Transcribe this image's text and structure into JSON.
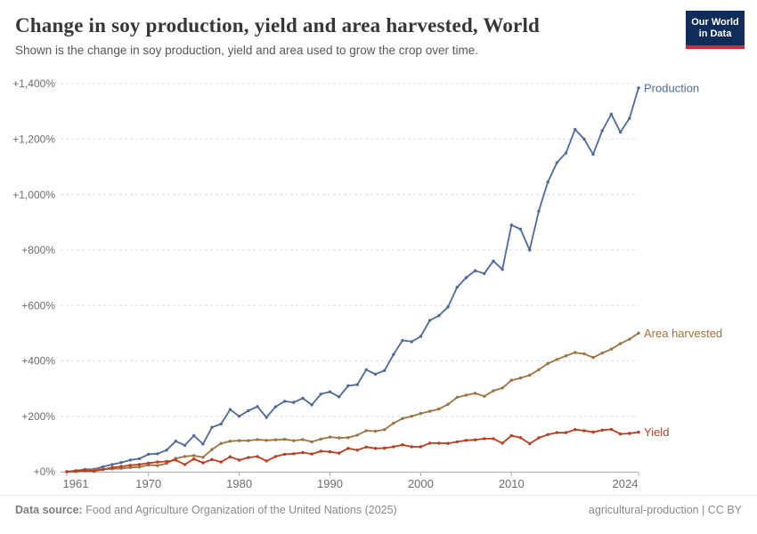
{
  "header": {
    "title": "Change in soy production, yield and area harvested, World",
    "subtitle": "Shown is the change in soy production, yield and area used to grow the crop over time.",
    "logo": {
      "line1": "Our World",
      "line2": "in Data"
    }
  },
  "footer": {
    "source_label": "Data source:",
    "source_text": " Food and Agriculture Organization of the United Nations (2025)",
    "attribution": "agricultural-production | CC BY"
  },
  "colors": {
    "production": "#4C6A9C",
    "area_harvested": "#9D7342",
    "yield": "#C13A1C",
    "grid": "#DCDCDC",
    "axis": "#ABABAB",
    "tick_label": "#6D6D6D",
    "logo_bg": "#102D5A",
    "logo_bar": "#D8252F"
  },
  "chart_data": {
    "type": "line",
    "title": "Change in soy production, yield and area harvested, World",
    "xlabel": "",
    "ylabel": "",
    "unit": "%",
    "value_prefix": "+",
    "grid": "horizontal-dashed",
    "legend": "line-end-labels",
    "ylim": [
      0,
      1400
    ],
    "yticks": [
      {
        "value": 0,
        "label": "+0%"
      },
      {
        "value": 200,
        "label": "+200%"
      },
      {
        "value": 400,
        "label": "+400%"
      },
      {
        "value": 600,
        "label": "+600%"
      },
      {
        "value": 800,
        "label": "+800%"
      },
      {
        "value": 1000,
        "label": "+1,000%"
      },
      {
        "value": 1200,
        "label": "+1,200%"
      },
      {
        "value": 1400,
        "label": "+1,400%"
      }
    ],
    "xticks": [
      {
        "value": 1961,
        "label": "1961"
      },
      {
        "value": 1970,
        "label": "1970"
      },
      {
        "value": 1980,
        "label": "1980"
      },
      {
        "value": 1990,
        "label": "1990"
      },
      {
        "value": 2000,
        "label": "2000"
      },
      {
        "value": 2010,
        "label": "2010"
      },
      {
        "value": 2024,
        "label": "2024"
      }
    ],
    "x": [
      1961,
      1962,
      1963,
      1964,
      1965,
      1966,
      1967,
      1968,
      1969,
      1970,
      1971,
      1972,
      1973,
      1974,
      1975,
      1976,
      1977,
      1978,
      1979,
      1980,
      1981,
      1982,
      1983,
      1984,
      1985,
      1986,
      1987,
      1988,
      1989,
      1990,
      1991,
      1992,
      1993,
      1994,
      1995,
      1996,
      1997,
      1998,
      1999,
      2000,
      2001,
      2002,
      2003,
      2004,
      2005,
      2006,
      2007,
      2008,
      2009,
      2010,
      2011,
      2012,
      2013,
      2014,
      2015,
      2016,
      2017,
      2018,
      2019,
      2020,
      2021,
      2022,
      2023,
      2024
    ],
    "series": [
      {
        "name": "Production",
        "color": "#4C6A9C",
        "values": [
          0,
          4,
          8,
          9,
          18,
          26,
          33,
          42,
          47,
          63,
          65,
          78,
          110,
          95,
          130,
          100,
          160,
          172,
          224,
          200,
          220,
          235,
          196,
          234,
          254,
          250,
          265,
          241,
          280,
          288,
          270,
          310,
          314,
          368,
          352,
          365,
          423,
          474,
          469,
          488,
          546,
          563,
          594,
          665,
          700,
          725,
          715,
          760,
          730,
          890,
          875,
          800,
          940,
          1045,
          1115,
          1150,
          1235,
          1200,
          1145,
          1230,
          1290,
          1225,
          1275,
          1385
        ]
      },
      {
        "name": "Area harvested",
        "color": "#9D7342",
        "values": [
          0,
          1,
          4,
          7,
          9,
          10,
          12,
          15,
          17,
          24,
          22,
          30,
          48,
          55,
          58,
          52,
          80,
          102,
          110,
          112,
          112,
          116,
          113,
          115,
          117,
          112,
          116,
          108,
          118,
          125,
          122,
          123,
          132,
          148,
          146,
          152,
          175,
          192,
          200,
          210,
          218,
          226,
          243,
          268,
          276,
          283,
          272,
          292,
          302,
          330,
          338,
          348,
          368,
          390,
          405,
          418,
          430,
          425,
          412,
          428,
          442,
          462,
          478,
          500
        ]
      },
      {
        "name": "Yield",
        "color": "#C13A1C",
        "values": [
          0,
          3,
          4,
          2,
          8,
          15,
          19,
          23,
          26,
          31,
          35,
          37,
          42,
          26,
          46,
          32,
          44,
          35,
          54,
          42,
          51,
          55,
          39,
          55,
          63,
          65,
          69,
          64,
          74,
          72,
          67,
          84,
          78,
          89,
          84,
          85,
          90,
          97,
          90,
          90,
          103,
          103,
          102,
          108,
          113,
          115,
          119,
          119,
          103,
          130,
          123,
          101,
          122,
          134,
          141,
          141,
          152,
          148,
          143,
          150,
          153,
          136,
          138,
          143
        ]
      }
    ]
  }
}
